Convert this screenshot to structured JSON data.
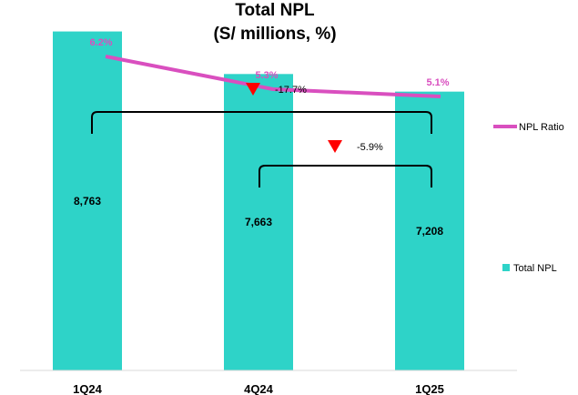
{
  "chart_data": {
    "type": "bar",
    "title": "Total NPL",
    "subtitle": "(S/ millions, %)",
    "categories": [
      "1Q24",
      "4Q24",
      "1Q25"
    ],
    "series": [
      {
        "name": "Total NPL",
        "type": "bar",
        "values": [
          8763,
          7663,
          7208
        ],
        "labels": [
          "8,763",
          "7,663",
          "7,208"
        ],
        "color": "#2ed3c8"
      },
      {
        "name": "NPL Ratio",
        "type": "line",
        "values": [
          6.2,
          5.3,
          5.1
        ],
        "labels": [
          "6.2%",
          "5.3%",
          "5.1%"
        ],
        "color": "#d94fbf"
      }
    ],
    "annotations": [
      {
        "from": "1Q24",
        "to": "1Q25",
        "text": "-17.7%",
        "marker": "down-triangle",
        "marker_color": "#ff0000"
      },
      {
        "from": "4Q24",
        "to": "1Q25",
        "text": "-5.9%",
        "marker": "down-triangle",
        "marker_color": "#ff0000"
      }
    ],
    "legend": "right",
    "grid": false,
    "bar_ylim": [
      0,
      9200
    ],
    "ratio_ylim": [
      4.5,
      6.5
    ]
  }
}
